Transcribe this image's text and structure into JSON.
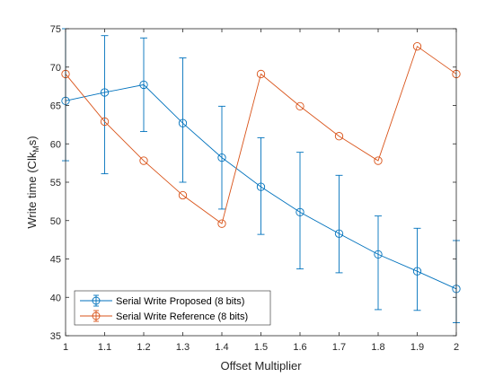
{
  "chart_data": {
    "type": "line",
    "xlabel": "Offset Multiplier",
    "ylabel_main": "Write time (Clk",
    "ylabel_sub": "M",
    "ylabel_end": "s)",
    "xlim": [
      1,
      2
    ],
    "ylim": [
      35,
      75
    ],
    "xticks": [
      1,
      1.1,
      1.2,
      1.3,
      1.4,
      1.5,
      1.6,
      1.7,
      1.8,
      1.9,
      2
    ],
    "xtick_labels": [
      "1",
      "1.1",
      "1.2",
      "1.3",
      "1.4",
      "1.5",
      "1.6",
      "1.7",
      "1.8",
      "1.9",
      "2"
    ],
    "yticks": [
      35,
      40,
      45,
      50,
      55,
      60,
      65,
      70,
      75
    ],
    "ytick_labels": [
      "35",
      "40",
      "45",
      "50",
      "55",
      "60",
      "65",
      "70",
      "75"
    ],
    "grid": false,
    "legend_position": "bottom-left",
    "series": [
      {
        "name": "Serial Write Proposed (8 bits)",
        "color": "#0072BD",
        "x": [
          1,
          1.1,
          1.2,
          1.3,
          1.4,
          1.5,
          1.6,
          1.7,
          1.8,
          1.9,
          2
        ],
        "y": [
          65.6,
          66.7,
          67.7,
          62.7,
          58.2,
          54.4,
          51.1,
          48.3,
          45.6,
          43.4,
          41.1
        ],
        "y_lower": [
          57.8,
          56.1,
          61.6,
          55.0,
          51.5,
          48.2,
          43.7,
          43.2,
          38.4,
          38.3,
          36.7
        ],
        "y_upper": [
          75.0,
          74.1,
          73.8,
          71.2,
          64.9,
          60.8,
          58.9,
          55.9,
          50.6,
          49.0,
          47.4
        ]
      },
      {
        "name": "Serial Write Reference (8 bits)",
        "color": "#D95319",
        "x": [
          1,
          1.1,
          1.2,
          1.3,
          1.4,
          1.5,
          1.6,
          1.7,
          1.8,
          1.9,
          2
        ],
        "y": [
          69.1,
          62.9,
          57.8,
          53.3,
          49.6,
          69.1,
          64.9,
          61.0,
          57.8,
          72.7,
          69.1
        ]
      }
    ]
  }
}
